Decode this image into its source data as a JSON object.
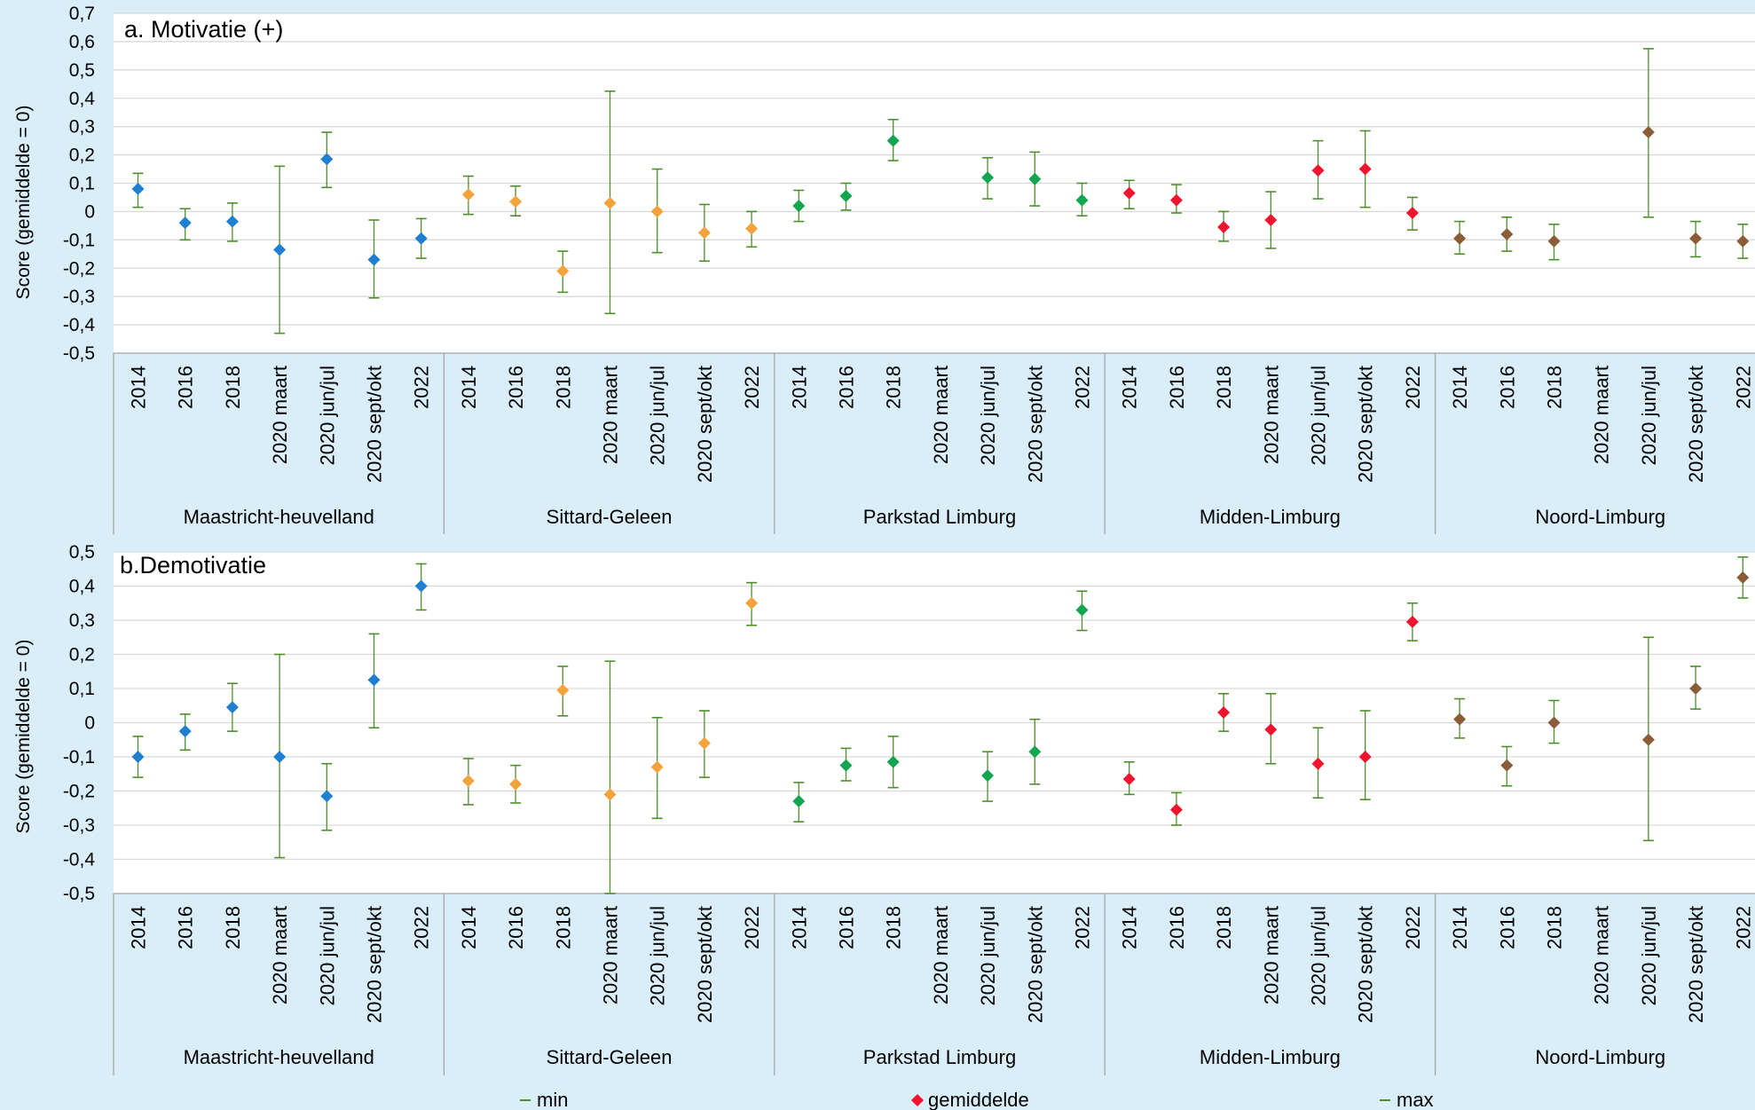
{
  "chart_data": [
    {
      "type": "scatter",
      "title": "a. Motivatie (+)",
      "ylabel": "Score (gemiddelde = 0)",
      "ylim": [
        -0.5,
        0.7
      ],
      "yticks": [
        "0,7",
        "0,6",
        "0,5",
        "0,4",
        "0,3",
        "0,2",
        "0,1",
        "0",
        "-0,1",
        "-0,2",
        "-0,3",
        "-0,4",
        "-0,5"
      ],
      "grid": "horizontal",
      "categories": [
        "2014",
        "2016",
        "2018",
        "2020 maart",
        "2020 jun/jul",
        "2020 sept/okt",
        "2022"
      ],
      "groups": [
        {
          "name": "Maastricht-heuvelland",
          "color": "#1f7fd0",
          "mean": [
            0.08,
            -0.04,
            -0.035,
            -0.135,
            0.185,
            -0.17,
            -0.095
          ],
          "min": [
            0.015,
            -0.1,
            -0.105,
            -0.43,
            0.085,
            -0.305,
            -0.165
          ],
          "max": [
            0.135,
            0.01,
            0.03,
            0.16,
            0.28,
            -0.03,
            -0.025
          ]
        },
        {
          "name": "Sittard-Geleen",
          "color": "#f4a23c",
          "mean": [
            0.06,
            0.035,
            -0.21,
            0.03,
            0.0,
            -0.075,
            -0.06
          ],
          "min": [
            -0.01,
            -0.015,
            -0.285,
            -0.36,
            -0.145,
            -0.175,
            -0.125
          ],
          "max": [
            0.125,
            0.09,
            -0.14,
            0.425,
            0.15,
            0.025,
            0.0
          ]
        },
        {
          "name": "Parkstad Limburg",
          "color": "#13a550",
          "mean": [
            0.02,
            0.055,
            0.25,
            null,
            0.12,
            0.115,
            0.04
          ],
          "min": [
            -0.035,
            0.005,
            0.18,
            null,
            0.045,
            0.02,
            -0.015
          ],
          "max": [
            0.075,
            0.1,
            0.325,
            null,
            0.19,
            0.21,
            0.1
          ]
        },
        {
          "name": "Midden-Limburg",
          "color": "#f0142f",
          "mean": [
            0.065,
            0.04,
            -0.055,
            -0.03,
            0.145,
            0.15,
            -0.005
          ],
          "min": [
            0.01,
            -0.005,
            -0.105,
            -0.13,
            0.045,
            0.015,
            -0.065
          ],
          "max": [
            0.11,
            0.095,
            0.0,
            0.07,
            0.25,
            0.285,
            0.05
          ]
        },
        {
          "name": "Noord-Limburg",
          "color": "#8a5c38",
          "mean": [
            -0.095,
            -0.08,
            -0.105,
            null,
            0.28,
            -0.095,
            -0.105
          ],
          "min": [
            -0.15,
            -0.14,
            -0.17,
            null,
            -0.02,
            -0.16,
            -0.165
          ],
          "max": [
            -0.035,
            -0.02,
            -0.045,
            null,
            0.575,
            -0.035,
            -0.045
          ]
        }
      ]
    },
    {
      "type": "scatter",
      "title": "b.Demotivatie",
      "ylabel": "Score (gemiddelde = 0)",
      "ylim": [
        -0.5,
        0.5
      ],
      "yticks": [
        "0,5",
        "0,4",
        "0,3",
        "0,2",
        "0,1",
        "0",
        "-0,1",
        "-0,2",
        "-0,3",
        "-0,4",
        "-0,5"
      ],
      "grid": "horizontal",
      "categories": [
        "2014",
        "2016",
        "2018",
        "2020 maart",
        "2020 jun/jul",
        "2020 sept/okt",
        "2022"
      ],
      "groups": [
        {
          "name": "Maastricht-heuvelland",
          "color": "#1f7fd0",
          "mean": [
            -0.1,
            -0.025,
            0.045,
            -0.1,
            -0.215,
            0.125,
            0.4
          ],
          "min": [
            -0.16,
            -0.08,
            -0.025,
            -0.395,
            -0.315,
            -0.015,
            0.33
          ],
          "max": [
            -0.04,
            0.025,
            0.115,
            0.2,
            -0.12,
            0.26,
            0.465
          ]
        },
        {
          "name": "Sittard-Geleen",
          "color": "#f4a23c",
          "mean": [
            -0.17,
            -0.18,
            0.095,
            -0.21,
            -0.13,
            -0.06,
            0.35
          ],
          "min": [
            -0.24,
            -0.235,
            0.02,
            -0.5,
            -0.28,
            -0.16,
            0.285
          ],
          "max": [
            -0.105,
            -0.125,
            0.165,
            0.18,
            0.015,
            0.035,
            0.41
          ]
        },
        {
          "name": "Parkstad Limburg",
          "color": "#13a550",
          "mean": [
            -0.23,
            -0.125,
            -0.115,
            null,
            -0.155,
            -0.085,
            0.33
          ],
          "min": [
            -0.29,
            -0.17,
            -0.19,
            null,
            -0.23,
            -0.18,
            0.27
          ],
          "max": [
            -0.175,
            -0.075,
            -0.04,
            null,
            -0.085,
            0.01,
            0.385
          ]
        },
        {
          "name": "Midden-Limburg",
          "color": "#f0142f",
          "mean": [
            -0.165,
            -0.255,
            0.03,
            -0.02,
            -0.12,
            -0.1,
            0.295
          ],
          "min": [
            -0.21,
            -0.3,
            -0.025,
            -0.12,
            -0.22,
            -0.225,
            0.24
          ],
          "max": [
            -0.115,
            -0.205,
            0.085,
            0.085,
            -0.015,
            0.035,
            0.35
          ]
        },
        {
          "name": "Noord-Limburg",
          "color": "#8a5c38",
          "mean": [
            0.01,
            -0.125,
            0.0,
            null,
            -0.05,
            0.1,
            0.425
          ],
          "min": [
            -0.045,
            -0.185,
            -0.06,
            null,
            -0.345,
            0.04,
            0.365
          ],
          "max": [
            0.07,
            -0.07,
            0.065,
            null,
            0.25,
            0.165,
            0.485
          ]
        }
      ]
    }
  ],
  "legend": {
    "placement": "bottom",
    "items": [
      {
        "label": "min",
        "symbol": "dash",
        "color": "#4d8f2a"
      },
      {
        "label": "gemiddelde",
        "symbol": "diamond",
        "color": "#f0142f"
      },
      {
        "label": "max",
        "symbol": "dash",
        "color": "#4d8f2a"
      }
    ]
  },
  "colors": {
    "background": "#d9eef9",
    "plot": "#ffffff",
    "grid": "#d9d9d9",
    "errorbar": "#4d8f2a",
    "separator": "#a6a6a6"
  }
}
